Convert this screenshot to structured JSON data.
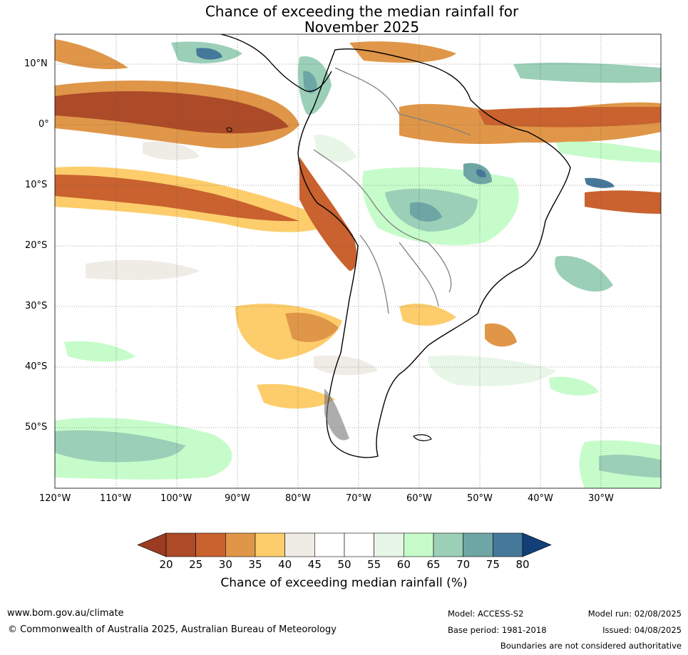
{
  "title_line1": "Chance of exceeding the median rainfall for",
  "title_line2": "November 2025",
  "lat_labels": [
    "10°N",
    "0°",
    "10°S",
    "20°S",
    "30°S",
    "40°S",
    "50°S"
  ],
  "lon_labels": [
    "120°W",
    "110°W",
    "100°W",
    "90°W",
    "80°W",
    "70°W",
    "60°W",
    "50°W",
    "40°W",
    "30°W"
  ],
  "colorbar": {
    "title": "Chance of exceeding median rainfall (%)",
    "ticks": [
      "20",
      "25",
      "30",
      "35",
      "40",
      "45",
      "50",
      "55",
      "60",
      "65",
      "70",
      "75",
      "80"
    ],
    "colors": [
      "#9a3b22",
      "#ad4a28",
      "#c9622f",
      "#e09648",
      "#fdcd6b",
      "#efece6",
      "#ffffff",
      "#ffffff",
      "#e8f6e8",
      "#c6fcca",
      "#9ccfb8",
      "#6ea5a5",
      "#46789a",
      "#123f78"
    ]
  },
  "footer": {
    "website": "www.bom.gov.au/climate",
    "copyright": "© Commonwealth of Australia 2025, Australian Bureau of Meteorology",
    "model": "Model: ACCESS-S2",
    "base_period": "Base period: 1981-2018",
    "model_run": "Model run: 02/08/2025",
    "issued": "Issued: 04/08/2025",
    "boundaries": "Boundaries are not considered authoritative"
  }
}
